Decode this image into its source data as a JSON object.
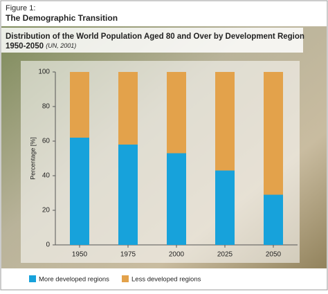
{
  "figure_label": "Figure 1:",
  "figure_title": "The Demographic Transition",
  "chart_data": {
    "type": "stacked_bar",
    "title_lines": [
      "Distribution of the World Population Aged 80 and Over by Development Region",
      "1950-2050"
    ],
    "source": "(UN, 2001)",
    "y_label": "Percentage [%]",
    "categories": [
      "1950",
      "1975",
      "2000",
      "2025",
      "2050"
    ],
    "series": [
      {
        "name": "More developed regions",
        "color": "#17a2db",
        "values": [
          62,
          58,
          53,
          43,
          29
        ]
      },
      {
        "name": "Less developed regions",
        "color": "#e3a24b",
        "values": [
          38,
          42,
          47,
          57,
          71
        ]
      }
    ],
    "ylim": [
      0,
      100
    ],
    "yticks": [
      0,
      20,
      40,
      60,
      80,
      100
    ],
    "legend": "bottom"
  }
}
